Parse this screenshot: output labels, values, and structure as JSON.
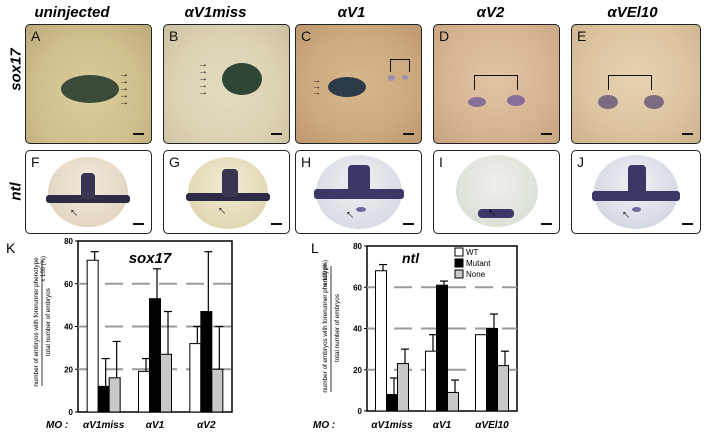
{
  "columns": [
    "uninjected",
    "αV1miss",
    "αV1",
    "αV2",
    "αVEl10"
  ],
  "rows": [
    "sox17",
    "ntl"
  ],
  "panels_top": [
    "A",
    "B",
    "C",
    "D",
    "E"
  ],
  "panels_bottom": [
    "F",
    "G",
    "H",
    "I",
    "J"
  ],
  "chart_K": {
    "letter": "K",
    "title": "sox17",
    "ylabel_top": "number of embryos with forerunner phenotype",
    "ylabel_bottom": "total number of embryos",
    "ylabel_factor": "x 100 (%)",
    "mo_label": "MO :"
  },
  "chart_L": {
    "letter": "L",
    "title": "ntl",
    "ylabel_top": "number of embryos with forerunner phenotype",
    "ylabel_bottom": "total number of embryos",
    "ylabel_factor": "x 100 (%)",
    "mo_label": "MO :"
  },
  "chart_data": [
    {
      "type": "bar",
      "title": "sox17",
      "categories": [
        "αV1miss",
        "αV1",
        "αV2"
      ],
      "series": [
        {
          "name": "WT",
          "values": [
            71,
            19,
            32
          ],
          "errors": [
            4,
            6,
            8
          ]
        },
        {
          "name": "Mutant",
          "values": [
            12,
            53,
            47
          ],
          "errors": [
            13,
            14,
            28
          ]
        },
        {
          "name": "None",
          "values": [
            16,
            27,
            20
          ],
          "errors": [
            17,
            20,
            20
          ]
        }
      ],
      "ylim": [
        0,
        80
      ],
      "yticks": [
        0,
        20,
        40,
        60,
        80
      ],
      "grid": true,
      "legend": "none"
    },
    {
      "type": "bar",
      "title": "ntl",
      "categories": [
        "αV1miss",
        "αV1",
        "αVEl10"
      ],
      "series": [
        {
          "name": "WT",
          "values": [
            68,
            29,
            37
          ],
          "errors": [
            3,
            8,
            0
          ]
        },
        {
          "name": "Mutant",
          "values": [
            8,
            61,
            40
          ],
          "errors": [
            8,
            2,
            7
          ]
        },
        {
          "name": "None",
          "values": [
            23,
            9,
            22
          ],
          "errors": [
            7,
            6,
            7
          ]
        }
      ],
      "ylim": [
        0,
        80
      ],
      "yticks": [
        0,
        20,
        40,
        60,
        80
      ],
      "grid": true,
      "legend": "top-right"
    }
  ],
  "colors": {
    "WT": "#ffffff",
    "Mutant": "#000000",
    "None": "#c8c8c8",
    "grid": "#9a9a9a"
  }
}
